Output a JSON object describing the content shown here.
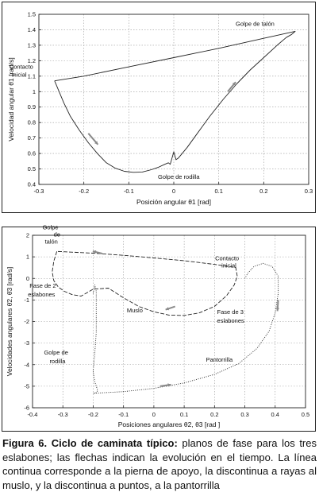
{
  "chart_data": [
    {
      "type": "line",
      "xlabel": "Posición angular",
      "xlabel_symbol": "θ1",
      "xlabel_unit": "[rad]",
      "ylabel": "Velocidad angular",
      "ylabel_symbol": "θ̇1",
      "ylabel_unit": "[rad/s]",
      "xlim": [
        -0.3,
        0.3
      ],
      "ylim": [
        0.4,
        1.5
      ],
      "xticks": [
        "-0.3",
        "-0.2",
        "-0.1",
        "0",
        "0.1",
        "0.2",
        "0.3"
      ],
      "yticks": [
        "0.4",
        "0.5",
        "0.6",
        "0.7",
        "0.8",
        "0.9",
        "1",
        "1.1",
        "1.2",
        "1.3",
        "1.4",
        "1.5"
      ],
      "grid": true,
      "series": [
        {
          "style": "solid",
          "x": [
            -0.265,
            -0.255,
            -0.245,
            -0.23,
            -0.21,
            -0.19,
            -0.17,
            -0.15,
            -0.13,
            -0.11,
            -0.09,
            -0.07,
            -0.05,
            -0.035,
            -0.02,
            -0.012,
            -0.008,
            -0.003,
            0.0,
            0.005,
            0.01,
            0.03,
            0.05,
            0.08,
            0.11,
            0.14,
            0.17,
            0.2,
            0.23,
            0.25,
            0.262,
            0.27,
            0.2,
            0.1,
            0.0,
            -0.1,
            -0.2,
            -0.265
          ],
          "y": [
            1.07,
            1.0,
            0.93,
            0.84,
            0.75,
            0.67,
            0.6,
            0.54,
            0.505,
            0.485,
            0.478,
            0.48,
            0.495,
            0.51,
            0.53,
            0.54,
            0.53,
            0.58,
            0.61,
            0.56,
            0.57,
            0.64,
            0.72,
            0.84,
            0.95,
            1.05,
            1.14,
            1.22,
            1.3,
            1.35,
            1.37,
            1.39,
            1.345,
            1.28,
            1.22,
            1.16,
            1.1,
            1.07
          ]
        }
      ],
      "annotations": [
        {
          "text": "Golpe de talón",
          "x": 0.27,
          "y": 1.39
        },
        {
          "text": "Contacto",
          "x": -0.265,
          "y": 1.07
        },
        {
          "text": "inicial",
          "x": -0.265,
          "y": 1.07
        },
        {
          "text": "Golpe de rodilla",
          "x": 0.0,
          "y": 0.54
        }
      ]
    },
    {
      "type": "line",
      "xlabel": "Posiciones angulares",
      "xlabel_symbol": "θ2, θ3",
      "xlabel_unit": "[rad ]",
      "ylabel": "Velocidades angulares",
      "ylabel_symbol": "θ̇2, θ̇3",
      "ylabel_unit": "[rad/s]",
      "xlim": [
        -0.4,
        0.5
      ],
      "ylim": [
        -6,
        2
      ],
      "xticks": [
        "-0.4",
        "-0.3",
        "-0.2",
        "-0.1",
        "0",
        "0.1",
        "0.2",
        "0.3",
        "0.4",
        "0.5"
      ],
      "yticks": [
        "-6",
        "-5",
        "-4",
        "-3",
        "-2",
        "-1",
        "0",
        "1",
        "2"
      ],
      "grid": true,
      "series": [
        {
          "name": "Muslo",
          "style": "dashed",
          "x": [
            -0.32,
            -0.33,
            -0.335,
            -0.33,
            -0.315,
            -0.295,
            -0.27,
            -0.24,
            -0.2,
            -0.15,
            -0.1,
            -0.05,
            0.0,
            0.05,
            0.1,
            0.15,
            0.2,
            0.24,
            0.265,
            0.275,
            0.27,
            0.2,
            0.1,
            0.0,
            -0.1,
            -0.2,
            -0.32
          ],
          "y": [
            1.25,
            0.8,
            0.3,
            -0.1,
            -0.4,
            -0.6,
            -0.75,
            -0.82,
            -0.5,
            -0.45,
            -0.9,
            -1.3,
            -1.55,
            -1.7,
            -1.72,
            -1.6,
            -1.3,
            -0.8,
            -0.3,
            0.1,
            0.5,
            0.65,
            0.82,
            0.95,
            1.07,
            1.17,
            1.25
          ]
        },
        {
          "name": "Pantorrilla",
          "style": "dotted",
          "x": [
            -0.2,
            -0.195,
            -0.19,
            -0.19,
            -0.19,
            -0.195,
            -0.2,
            -0.195,
            -0.185,
            -0.19,
            -0.2,
            -0.1,
            0.0,
            0.1,
            0.2,
            0.28,
            0.34,
            0.38,
            0.4,
            0.41,
            0.41,
            0.39,
            0.36,
            0.33,
            0.31,
            0.3
          ],
          "y": [
            -0.7,
            -0.3,
            -0.6,
            -1.5,
            -2.5,
            -3.5,
            -4.3,
            -4.8,
            -5.2,
            -5.3,
            -5.33,
            -5.25,
            -5.1,
            -4.85,
            -4.45,
            -3.95,
            -3.25,
            -2.45,
            -1.6,
            -0.7,
            0.1,
            0.55,
            0.7,
            0.55,
            0.25,
            0.0
          ]
        }
      ],
      "annotations": [
        {
          "text": "Golpe",
          "x": -0.32,
          "y": 1.25
        },
        {
          "text": "de",
          "x": -0.32,
          "y": 1.25
        },
        {
          "text": "talón",
          "x": -0.32,
          "y": 1.25
        },
        {
          "text": "Contacto",
          "x": 0.27,
          "y": 0.4
        },
        {
          "text": "inicial",
          "x": 0.27,
          "y": 0.4
        },
        {
          "text": "Fase de 2",
          "x": -0.3,
          "y": -0.1
        },
        {
          "text": "eslabones",
          "x": -0.3,
          "y": -0.1
        },
        {
          "text": "Golpe de",
          "x": -0.2,
          "y": -1.9
        },
        {
          "text": "rodilla",
          "x": -0.2,
          "y": -1.9
        },
        {
          "text": "Muslo",
          "x": 0.0,
          "y": -1.5
        },
        {
          "text": "Fase de 3",
          "x": 0.3,
          "y": -1.2
        },
        {
          "text": "eslabones",
          "x": 0.3,
          "y": -1.2
        },
        {
          "text": "Pantorrilla",
          "x": 0.25,
          "y": -3.5
        }
      ]
    }
  ],
  "caption": {
    "lead": "Figura 6. Ciclo de caminata típico:",
    "rest": " planos de fase para los tres eslabones; las flechas indican la evolución en el tiempo. La línea continua corresponde a la pierna de apoyo, la discontinua a rayas al muslo, y la discontinua a puntos, a la pantorrilla"
  }
}
